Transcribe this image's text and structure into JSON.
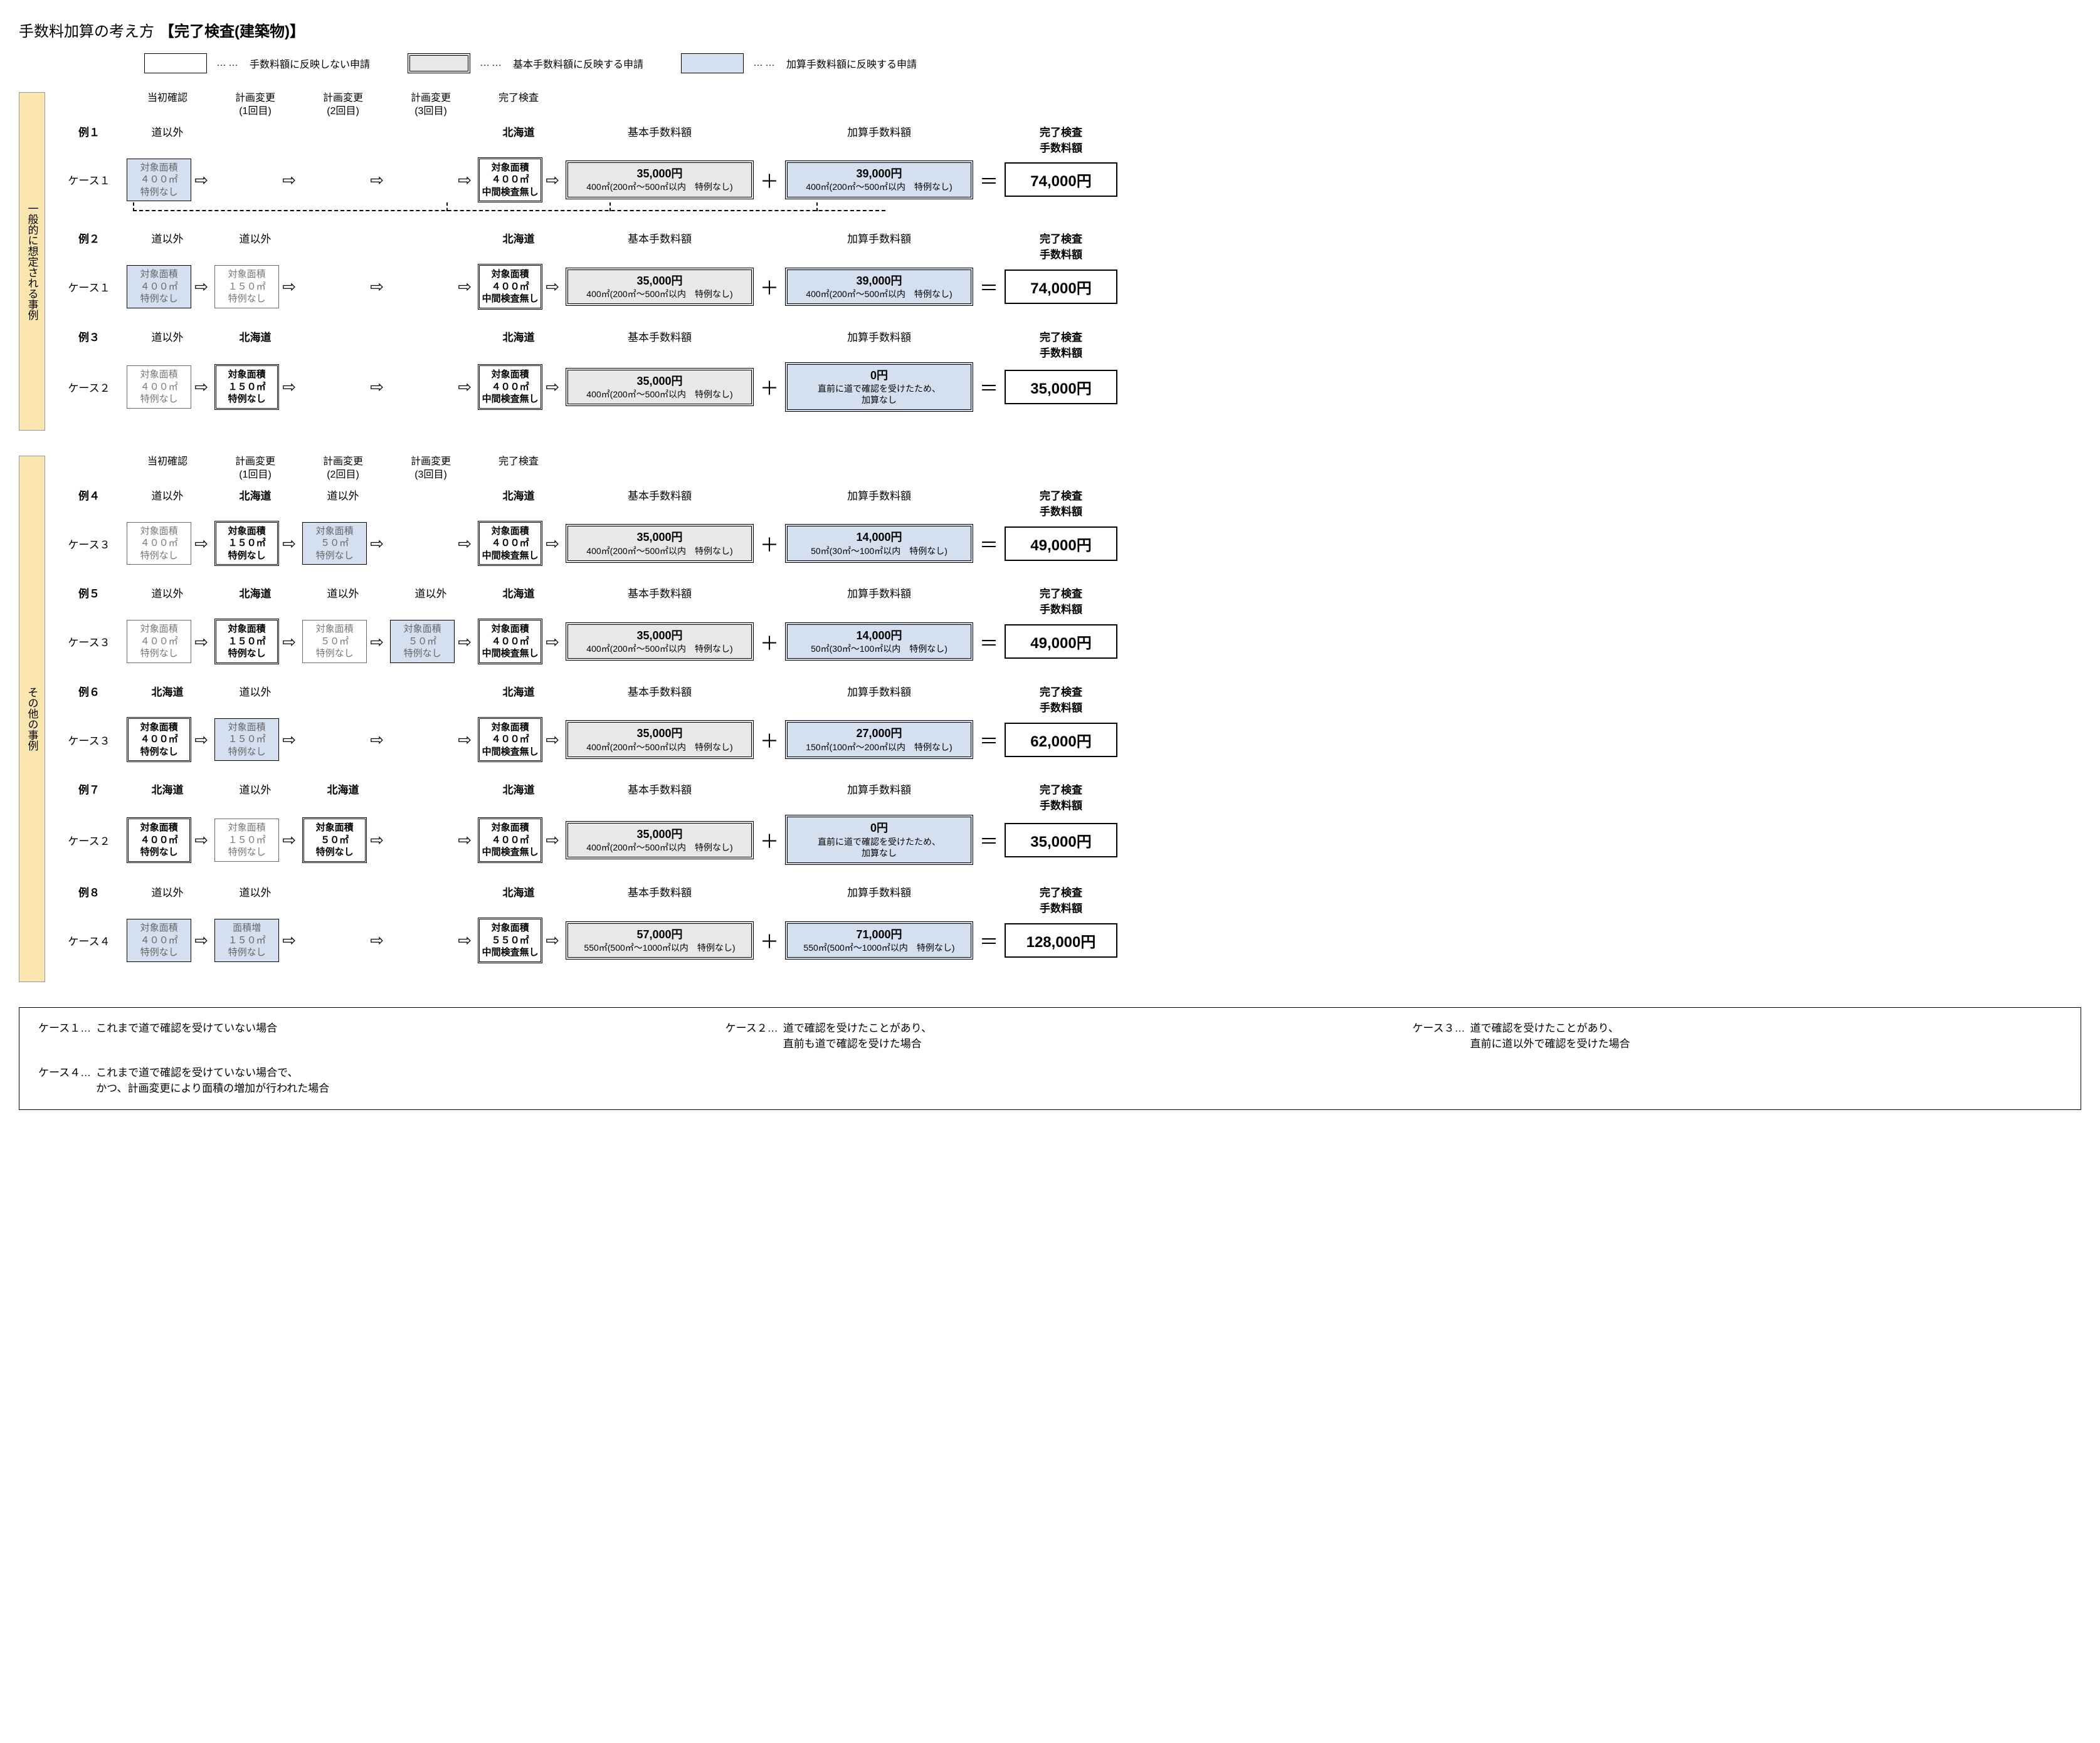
{
  "title_prefix": "手数料加算の考え方",
  "title_main": "【完了検査(建築物)】",
  "legend": {
    "plain": "手数料額に反映しない申請",
    "basic": "基本手数料額に反映する申請",
    "addition": "加算手数料額に反映する申請",
    "dots": "……"
  },
  "section_labels": {
    "general": "一般的に想定される事例",
    "other": "その他の事例"
  },
  "col_headers": {
    "c1": "当初確認",
    "c2": "計画変更\n(1回目)",
    "c3": "計画変更\n(2回目)",
    "c4": "計画変更\n(3回目)",
    "c5": "完了検査",
    "basic": "基本手数料額",
    "addition": "加算手数料額",
    "total": "完了検査\n手数料額"
  },
  "rows": [
    {
      "ex": "例１",
      "case": "ケース１",
      "section": "general",
      "slots": [
        {
          "head": "道以外",
          "box": {
            "cls": "blue",
            "l1": "対象面積",
            "l2": "４００㎡",
            "l3": "特例なし"
          }
        },
        {
          "head": "",
          "box": null
        },
        {
          "head": "",
          "box": null
        },
        {
          "head": "",
          "box": null
        },
        {
          "head": "北海道",
          "box": {
            "cls": "final-double",
            "l1": "対象面積",
            "l2": "４００㎡",
            "l3": "中間検査無し"
          }
        }
      ],
      "basic": {
        "amount": "35,000円",
        "detail": "400㎡(200㎡～500㎡以内　特例なし)"
      },
      "addition": {
        "amount": "39,000円",
        "detail": "400㎡(200㎡～500㎡以内　特例なし)"
      },
      "total": "74,000円",
      "dashed": true
    },
    {
      "ex": "例２",
      "case": "ケース１",
      "section": "general",
      "slots": [
        {
          "head": "道以外",
          "box": {
            "cls": "blue",
            "l1": "対象面積",
            "l2": "４００㎡",
            "l3": "特例なし"
          }
        },
        {
          "head": "道以外",
          "box": {
            "cls": "plain",
            "l1": "対象面積",
            "l2": "１５０㎡",
            "l3": "特例なし"
          }
        },
        {
          "head": "",
          "box": null
        },
        {
          "head": "",
          "box": null
        },
        {
          "head": "北海道",
          "box": {
            "cls": "final-double",
            "l1": "対象面積",
            "l2": "４００㎡",
            "l3": "中間検査無し"
          }
        }
      ],
      "basic": {
        "amount": "35,000円",
        "detail": "400㎡(200㎡～500㎡以内　特例なし)"
      },
      "addition": {
        "amount": "39,000円",
        "detail": "400㎡(200㎡～500㎡以内　特例なし)"
      },
      "total": "74,000円"
    },
    {
      "ex": "例３",
      "case": "ケース２",
      "section": "general",
      "slots": [
        {
          "head": "道以外",
          "box": {
            "cls": "plain",
            "l1": "対象面積",
            "l2": "４００㎡",
            "l3": "特例なし"
          }
        },
        {
          "head": "北海道",
          "box": {
            "cls": "double",
            "l1": "対象面積",
            "l2": "１５０㎡",
            "l3": "特例なし"
          }
        },
        {
          "head": "",
          "box": null
        },
        {
          "head": "",
          "box": null
        },
        {
          "head": "北海道",
          "box": {
            "cls": "final-double",
            "l1": "対象面積",
            "l2": "４００㎡",
            "l3": "中間検査無し"
          }
        }
      ],
      "basic": {
        "amount": "35,000円",
        "detail": "400㎡(200㎡～500㎡以内　特例なし)"
      },
      "addition": {
        "amount": "0円",
        "detail": "直前に道で確認を受けたため、\n加算なし"
      },
      "total": "35,000円"
    },
    {
      "ex": "例４",
      "case": "ケース３",
      "section": "other",
      "slots": [
        {
          "head": "道以外",
          "box": {
            "cls": "plain",
            "l1": "対象面積",
            "l2": "４００㎡",
            "l3": "特例なし"
          }
        },
        {
          "head": "北海道",
          "box": {
            "cls": "double",
            "l1": "対象面積",
            "l2": "１５０㎡",
            "l3": "特例なし"
          }
        },
        {
          "head": "道以外",
          "box": {
            "cls": "blue",
            "l1": "対象面積",
            "l2": "５０㎡",
            "l3": "特例なし"
          }
        },
        {
          "head": "",
          "box": null
        },
        {
          "head": "北海道",
          "box": {
            "cls": "final-double",
            "l1": "対象面積",
            "l2": "４００㎡",
            "l3": "中間検査無し"
          }
        }
      ],
      "basic": {
        "amount": "35,000円",
        "detail": "400㎡(200㎡～500㎡以内　特例なし)"
      },
      "addition": {
        "amount": "14,000円",
        "detail": "50㎡(30㎡～100㎡以内　特例なし)"
      },
      "total": "49,000円"
    },
    {
      "ex": "例５",
      "case": "ケース３",
      "section": "other",
      "slots": [
        {
          "head": "道以外",
          "box": {
            "cls": "plain",
            "l1": "対象面積",
            "l2": "４００㎡",
            "l3": "特例なし"
          }
        },
        {
          "head": "北海道",
          "box": {
            "cls": "double",
            "l1": "対象面積",
            "l2": "１５０㎡",
            "l3": "特例なし"
          }
        },
        {
          "head": "道以外",
          "box": {
            "cls": "plain",
            "l1": "対象面積",
            "l2": "５０㎡",
            "l3": "特例なし"
          }
        },
        {
          "head": "道以外",
          "box": {
            "cls": "blue",
            "l1": "対象面積",
            "l2": "５０㎡",
            "l3": "特例なし"
          }
        },
        {
          "head": "北海道",
          "box": {
            "cls": "final-double",
            "l1": "対象面積",
            "l2": "４００㎡",
            "l3": "中間検査無し"
          }
        }
      ],
      "basic": {
        "amount": "35,000円",
        "detail": "400㎡(200㎡～500㎡以内　特例なし)"
      },
      "addition": {
        "amount": "14,000円",
        "detail": "50㎡(30㎡～100㎡以内　特例なし)"
      },
      "total": "49,000円"
    },
    {
      "ex": "例６",
      "case": "ケース３",
      "section": "other",
      "slots": [
        {
          "head": "北海道",
          "box": {
            "cls": "double",
            "l1": "対象面積",
            "l2": "４００㎡",
            "l3": "特例なし"
          }
        },
        {
          "head": "道以外",
          "box": {
            "cls": "blue",
            "l1": "対象面積",
            "l2": "１５０㎡",
            "l3": "特例なし"
          }
        },
        {
          "head": "",
          "box": null
        },
        {
          "head": "",
          "box": null
        },
        {
          "head": "北海道",
          "box": {
            "cls": "final-double",
            "l1": "対象面積",
            "l2": "４００㎡",
            "l3": "中間検査無し"
          }
        }
      ],
      "basic": {
        "amount": "35,000円",
        "detail": "400㎡(200㎡～500㎡以内　特例なし)"
      },
      "addition": {
        "amount": "27,000円",
        "detail": "150㎡(100㎡～200㎡以内　特例なし)"
      },
      "total": "62,000円"
    },
    {
      "ex": "例７",
      "case": "ケース２",
      "section": "other",
      "slots": [
        {
          "head": "北海道",
          "box": {
            "cls": "double",
            "l1": "対象面積",
            "l2": "４００㎡",
            "l3": "特例なし"
          }
        },
        {
          "head": "道以外",
          "box": {
            "cls": "plain",
            "l1": "対象面積",
            "l2": "１５０㎡",
            "l3": "特例なし"
          }
        },
        {
          "head": "北海道",
          "box": {
            "cls": "double",
            "l1": "対象面積",
            "l2": "５０㎡",
            "l3": "特例なし"
          }
        },
        {
          "head": "",
          "box": null
        },
        {
          "head": "北海道",
          "box": {
            "cls": "final-double",
            "l1": "対象面積",
            "l2": "４００㎡",
            "l3": "中間検査無し"
          }
        }
      ],
      "basic": {
        "amount": "35,000円",
        "detail": "400㎡(200㎡～500㎡以内　特例なし)"
      },
      "addition": {
        "amount": "0円",
        "detail": "直前に道で確認を受けたため、\n加算なし"
      },
      "total": "35,000円"
    },
    {
      "ex": "例８",
      "case": "ケース４",
      "section": "other",
      "slots": [
        {
          "head": "道以外",
          "box": {
            "cls": "blue",
            "l1": "対象面積",
            "l2": "４００㎡",
            "l3": "特例なし"
          }
        },
        {
          "head": "道以外",
          "box": {
            "cls": "blue",
            "l1": "面積増",
            "l2": "１５０㎡",
            "l3": "特例なし"
          }
        },
        {
          "head": "",
          "box": null
        },
        {
          "head": "",
          "box": null
        },
        {
          "head": "北海道",
          "box": {
            "cls": "final-double",
            "l1": "対象面積",
            "l2": "５５０㎡",
            "l3": "中間検査無し"
          }
        }
      ],
      "basic": {
        "amount": "57,000円",
        "detail": "550㎡(500㎡～1000㎡以内　特例なし)"
      },
      "addition": {
        "amount": "71,000円",
        "detail": "550㎡(500㎡～1000㎡以内　特例なし)"
      },
      "total": "128,000円"
    }
  ],
  "footer": {
    "k1": "ケース１…",
    "v1": "これまで道で確認を受けていない場合",
    "k2": "ケース２…",
    "v2": "道で確認を受けたことがあり、\n直前も道で確認を受けた場合",
    "k3": "ケース３…",
    "v3": "道で確認を受けたことがあり、\n直前に道以外で確認を受けた場合",
    "k4": "ケース４…",
    "v4": "これまで道で確認を受けていない場合で、\nかつ、計画変更により面積の増加が行われた場合"
  }
}
